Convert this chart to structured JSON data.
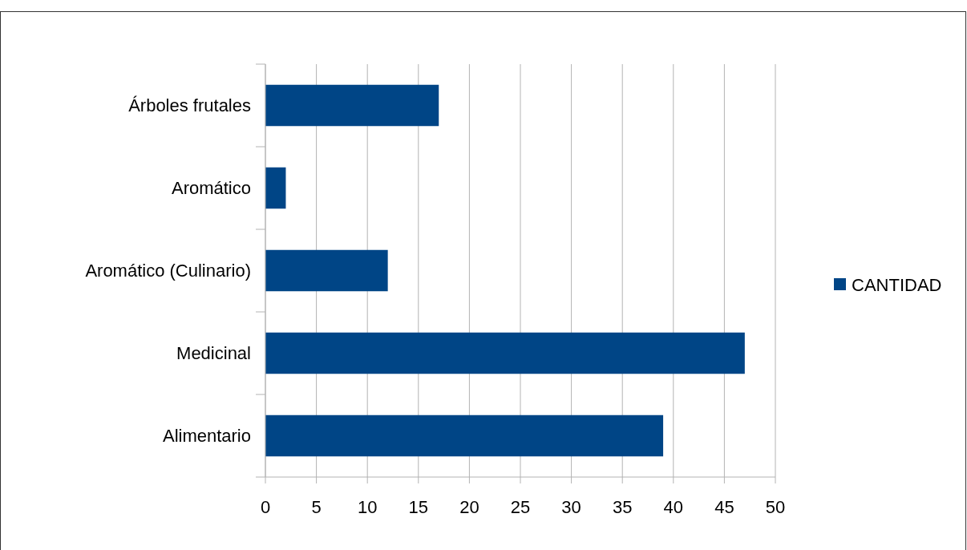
{
  "chart_data": {
    "type": "bar",
    "orientation": "horizontal",
    "categories": [
      "Árboles frutales",
      "Aromático",
      "Aromático (Culinario)",
      "Medicinal",
      "Alimentario"
    ],
    "series": [
      {
        "name": "CANTIDAD",
        "color": "#004586",
        "values": [
          17,
          2,
          12,
          47,
          39
        ]
      }
    ],
    "xlim": [
      0,
      50
    ],
    "xticks": [
      0,
      5,
      10,
      15,
      20,
      25,
      30,
      35,
      40,
      45,
      50
    ],
    "grid": "x",
    "legend": "right"
  }
}
